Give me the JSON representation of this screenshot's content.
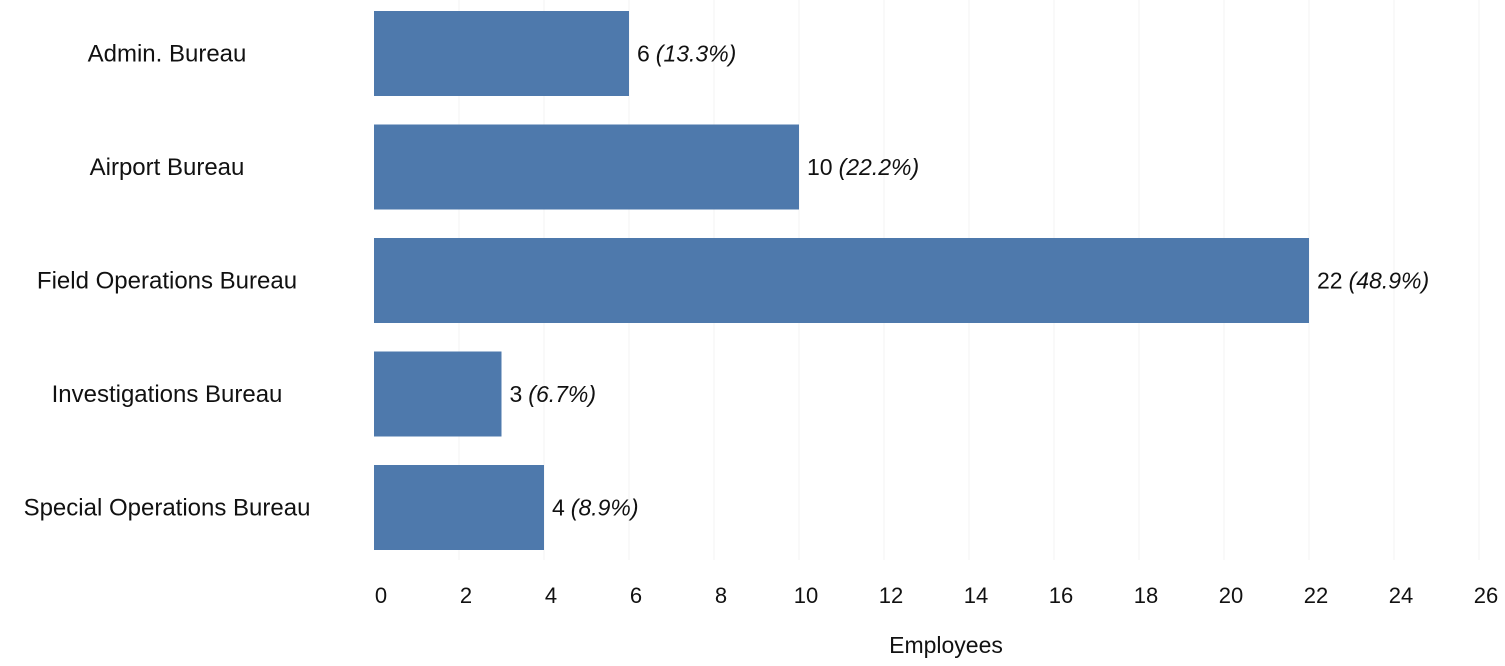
{
  "chart_data": {
    "type": "bar",
    "orientation": "horizontal",
    "categories": [
      "Admin. Bureau",
      "Airport Bureau",
      "Field Operations Bureau",
      "Investigations Bureau",
      "Special Operations Bureau"
    ],
    "values": [
      6,
      10,
      22,
      3,
      4
    ],
    "value_labels": [
      {
        "count": "6",
        "percent": "(13.3%)"
      },
      {
        "count": "10",
        "percent": "(22.2%)"
      },
      {
        "count": "22",
        "percent": "(48.9%)"
      },
      {
        "count": "3",
        "percent": "(6.7%)"
      },
      {
        "count": "4",
        "percent": "(8.9%)"
      }
    ],
    "xlabel": "Employees",
    "ylabel": "",
    "xlim": [
      0,
      26
    ],
    "xticks": [
      0,
      2,
      4,
      6,
      8,
      10,
      12,
      14,
      16,
      18,
      20,
      22,
      24,
      26
    ],
    "grid": "vertical",
    "legend": "none",
    "colors": {
      "bar": "#4e79ac",
      "grid": "#f3f3f3",
      "text": "#111111"
    }
  }
}
